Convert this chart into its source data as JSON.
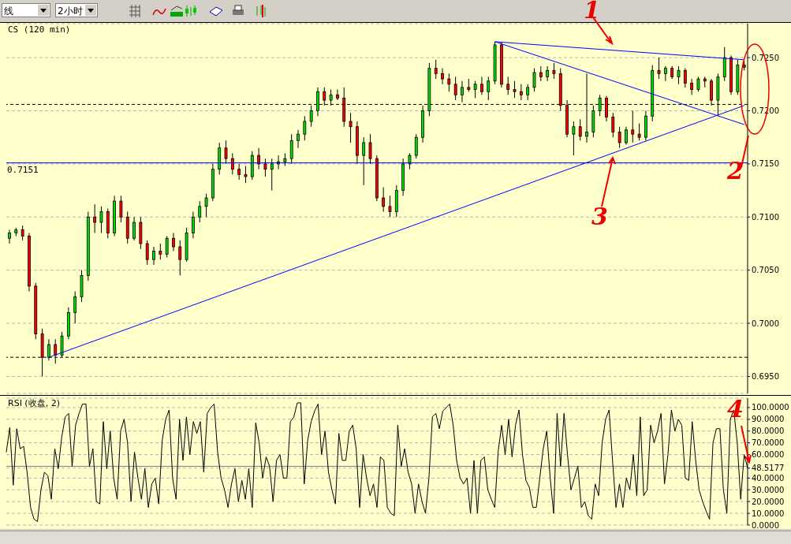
{
  "chart_data": [
    {
      "type": "candlestick",
      "title": "CS (120 min)",
      "annotations": [
        "线",
        "2小时",
        "1",
        "2",
        "3",
        "4"
      ],
      "categories": [
        null,
        null,
        null,
        null,
        null,
        null,
        null,
        null,
        null,
        null,
        null,
        null,
        null,
        null,
        null,
        null,
        null,
        null,
        null,
        null,
        null,
        null,
        null,
        null,
        null,
        null,
        null,
        null,
        null,
        null,
        null,
        null,
        null,
        null,
        null,
        null,
        null,
        null,
        null,
        null,
        null,
        null,
        null,
        null,
        null,
        null,
        null,
        null,
        null,
        null,
        null,
        null,
        null,
        null,
        null,
        null,
        null,
        null,
        null,
        null,
        null,
        null,
        null,
        null,
        null,
        null,
        null,
        null,
        null,
        null,
        null,
        null,
        null,
        null,
        null,
        null,
        null,
        null,
        null,
        null,
        null,
        null,
        null,
        null,
        null,
        null,
        null,
        null,
        null,
        null,
        null,
        null,
        null,
        null,
        null,
        null,
        null,
        null,
        null,
        null,
        null,
        null,
        null,
        null,
        null,
        null,
        null,
        null,
        null,
        null,
        null,
        null,
        null
      ],
      "ohlc": [
        [
          0.708,
          0.7088,
          0.7075,
          0.7085
        ],
        [
          0.7085,
          0.709,
          0.7082,
          0.7088
        ],
        [
          0.7088,
          0.7092,
          0.7078,
          0.7082
        ],
        [
          0.7082,
          0.7085,
          0.703,
          0.7035
        ],
        [
          0.7035,
          0.7038,
          0.6985,
          0.699
        ],
        [
          0.699,
          0.6995,
          0.695,
          0.6968
        ],
        [
          0.6968,
          0.6985,
          0.6965,
          0.698
        ],
        [
          0.698,
          0.6985,
          0.6962,
          0.697
        ],
        [
          0.697,
          0.6992,
          0.6968,
          0.6988
        ],
        [
          0.6988,
          0.7015,
          0.6985,
          0.701
        ],
        [
          0.701,
          0.703,
          0.7,
          0.7025
        ],
        [
          0.7025,
          0.705,
          0.702,
          0.7045
        ],
        [
          0.7045,
          0.7105,
          0.704,
          0.71
        ],
        [
          0.71,
          0.7112,
          0.7085,
          0.7095
        ],
        [
          0.7095,
          0.711,
          0.7085,
          0.7105
        ],
        [
          0.7105,
          0.7108,
          0.708,
          0.7085
        ],
        [
          0.7085,
          0.712,
          0.7082,
          0.7115
        ],
        [
          0.7115,
          0.712,
          0.7095,
          0.71
        ],
        [
          0.71,
          0.7105,
          0.7075,
          0.708
        ],
        [
          0.708,
          0.71,
          0.7078,
          0.7095
        ],
        [
          0.7095,
          0.71,
          0.707,
          0.7075
        ],
        [
          0.7075,
          0.7078,
          0.7055,
          0.706
        ],
        [
          0.706,
          0.7072,
          0.7055,
          0.7068
        ],
        [
          0.7068,
          0.7075,
          0.706,
          0.7065
        ],
        [
          0.7065,
          0.7082,
          0.7062,
          0.708
        ],
        [
          0.708,
          0.7085,
          0.7068,
          0.7072
        ],
        [
          0.7072,
          0.7078,
          0.7045,
          0.706
        ],
        [
          0.706,
          0.709,
          0.7058,
          0.7085
        ],
        [
          0.7085,
          0.7105,
          0.708,
          0.71
        ],
        [
          0.71,
          0.7115,
          0.7095,
          0.711
        ],
        [
          0.711,
          0.7122,
          0.71,
          0.7118
        ],
        [
          0.7118,
          0.715,
          0.7115,
          0.7145
        ],
        [
          0.7145,
          0.717,
          0.714,
          0.7165
        ],
        [
          0.7165,
          0.7172,
          0.715,
          0.7155
        ],
        [
          0.7155,
          0.716,
          0.714,
          0.7145
        ],
        [
          0.7145,
          0.715,
          0.7135,
          0.714
        ],
        [
          0.714,
          0.7148,
          0.7132,
          0.7138
        ],
        [
          0.7138,
          0.7162,
          0.7135,
          0.7158
        ],
        [
          0.7158,
          0.7165,
          0.7145,
          0.715
        ],
        [
          0.715,
          0.7155,
          0.7138,
          0.7145
        ],
        [
          0.7145,
          0.7155,
          0.7125,
          0.715
        ],
        [
          0.715,
          0.7158,
          0.7145,
          0.7152
        ],
        [
          0.7152,
          0.716,
          0.7148,
          0.7155
        ],
        [
          0.7155,
          0.7178,
          0.715,
          0.7172
        ],
        [
          0.7172,
          0.7182,
          0.7165,
          0.7178
        ],
        [
          0.7178,
          0.7195,
          0.7172,
          0.719
        ],
        [
          0.719,
          0.7205,
          0.7185,
          0.72
        ],
        [
          0.72,
          0.7222,
          0.7195,
          0.7218
        ],
        [
          0.7218,
          0.7222,
          0.7205,
          0.721
        ],
        [
          0.721,
          0.722,
          0.7205,
          0.7215
        ],
        [
          0.7215,
          0.722,
          0.721,
          0.7212
        ],
        [
          0.7212,
          0.7222,
          0.7185,
          0.719
        ],
        [
          0.719,
          0.7198,
          0.717,
          0.7185
        ],
        [
          0.7185,
          0.719,
          0.715,
          0.7158
        ],
        [
          0.7158,
          0.7175,
          0.713,
          0.717
        ],
        [
          0.717,
          0.7178,
          0.715,
          0.7155
        ],
        [
          0.7155,
          0.7158,
          0.7115,
          0.7118
        ],
        [
          0.7118,
          0.7128,
          0.7105,
          0.711
        ],
        [
          0.711,
          0.712,
          0.71,
          0.7105
        ],
        [
          0.7105,
          0.713,
          0.71,
          0.7125
        ],
        [
          0.7125,
          0.7155,
          0.712,
          0.715
        ],
        [
          0.715,
          0.716,
          0.7145,
          0.7158
        ],
        [
          0.7158,
          0.7178,
          0.7155,
          0.7175
        ],
        [
          0.7175,
          0.7205,
          0.717,
          0.72
        ],
        [
          0.72,
          0.7245,
          0.7195,
          0.724
        ],
        [
          0.724,
          0.7248,
          0.723,
          0.7235
        ],
        [
          0.7235,
          0.724,
          0.7225,
          0.723
        ],
        [
          0.723,
          0.7235,
          0.7218,
          0.7225
        ],
        [
          0.7225,
          0.7232,
          0.721,
          0.7215
        ],
        [
          0.7215,
          0.7228,
          0.7208,
          0.7222
        ],
        [
          0.7222,
          0.723,
          0.7218,
          0.722
        ],
        [
          0.722,
          0.7228,
          0.7212,
          0.7225
        ],
        [
          0.7225,
          0.7232,
          0.7215,
          0.7218
        ],
        [
          0.7218,
          0.7232,
          0.721,
          0.7228
        ],
        [
          0.7228,
          0.7265,
          0.7225,
          0.7262
        ],
        [
          0.7262,
          0.7265,
          0.7222,
          0.7225
        ],
        [
          0.7225,
          0.7232,
          0.7215,
          0.722
        ],
        [
          0.722,
          0.7228,
          0.7212,
          0.7218
        ],
        [
          0.7218,
          0.7225,
          0.721,
          0.7215
        ],
        [
          0.7215,
          0.7225,
          0.721,
          0.7222
        ],
        [
          0.7222,
          0.724,
          0.7218,
          0.7236
        ],
        [
          0.7236,
          0.7242,
          0.7228,
          0.7232
        ],
        [
          0.7232,
          0.7242,
          0.7228,
          0.7238
        ],
        [
          0.7238,
          0.7245,
          0.723,
          0.7235
        ],
        [
          0.7235,
          0.724,
          0.72,
          0.7205
        ],
        [
          0.7205,
          0.721,
          0.7175,
          0.7178
        ],
        [
          0.7178,
          0.719,
          0.7158,
          0.7185
        ],
        [
          0.7185,
          0.7192,
          0.7172,
          0.7176
        ],
        [
          0.7176,
          0.7235,
          0.717,
          0.718
        ],
        [
          0.718,
          0.7205,
          0.7175,
          0.72
        ],
        [
          0.72,
          0.7215,
          0.7195,
          0.7212
        ],
        [
          0.7212,
          0.7214,
          0.719,
          0.7194
        ],
        [
          0.7194,
          0.7198,
          0.7175,
          0.718
        ],
        [
          0.718,
          0.7185,
          0.7165,
          0.717
        ],
        [
          0.717,
          0.7185,
          0.7168,
          0.7182
        ],
        [
          0.7182,
          0.72,
          0.717,
          0.7178
        ],
        [
          0.7178,
          0.7188,
          0.7172,
          0.7175
        ],
        [
          0.7175,
          0.72,
          0.7172,
          0.7195
        ],
        [
          0.7195,
          0.7243,
          0.719,
          0.7238
        ],
        [
          0.7238,
          0.725,
          0.723,
          0.7235
        ],
        [
          0.7235,
          0.7242,
          0.7228,
          0.724
        ],
        [
          0.724,
          0.7242,
          0.723,
          0.7232
        ],
        [
          0.7232,
          0.7242,
          0.7225,
          0.7238
        ],
        [
          0.7238,
          0.724,
          0.7222,
          0.7226
        ],
        [
          0.7226,
          0.723,
          0.7215,
          0.722
        ],
        [
          0.722,
          0.7232,
          0.7218,
          0.723
        ],
        [
          0.723,
          0.7232,
          0.7222,
          0.7228
        ],
        [
          0.7228,
          0.723,
          0.7205,
          0.721
        ],
        [
          0.721,
          0.7235,
          0.7195,
          0.7232
        ],
        [
          0.7232,
          0.726,
          0.7228,
          0.725
        ],
        [
          0.725,
          0.7252,
          0.7215,
          0.7218
        ],
        [
          0.7218,
          0.7248,
          0.7215,
          0.7243
        ],
        [
          0.7243,
          0.7247,
          0.7238,
          0.7241
        ]
      ],
      "series": [
        {
          "type": "line",
          "color": "#0000ff",
          "values": [
            null,
            null,
            null,
            null,
            null,
            null,
            0.6968,
            null,
            null,
            null,
            null,
            null,
            null,
            null,
            null,
            null,
            null,
            null,
            null,
            null,
            null,
            null,
            null,
            null,
            null,
            null,
            null,
            null,
            null,
            null,
            null,
            null,
            null,
            null,
            null,
            null,
            null,
            null,
            null,
            null,
            null,
            null,
            null,
            null,
            null,
            null,
            null,
            null,
            null,
            null,
            null,
            null,
            null,
            null,
            null,
            null,
            null,
            null,
            null,
            null,
            null,
            null,
            null,
            null,
            null,
            null,
            null,
            null,
            null,
            null,
            null,
            null,
            null,
            null,
            null,
            null,
            null,
            null,
            null,
            null,
            null,
            null,
            null,
            null,
            null,
            null,
            null,
            null,
            null,
            null,
            null,
            null,
            null,
            null,
            null,
            null,
            null,
            null,
            null,
            null,
            null,
            null,
            null,
            null,
            null,
            null,
            null,
            null,
            null,
            null,
            null,
            null,
            0.7205
          ]
        },
        {
          "type": "line",
          "color": "#0000ff",
          "values": [
            null,
            null,
            null,
            null,
            null,
            null,
            null,
            null,
            null,
            null,
            null,
            null,
            null,
            null,
            null,
            null,
            null,
            null,
            null,
            null,
            null,
            null,
            null,
            null,
            null,
            null,
            null,
            null,
            null,
            null,
            null,
            null,
            null,
            null,
            null,
            null,
            null,
            null,
            null,
            null,
            null,
            null,
            null,
            null,
            null,
            null,
            null,
            null,
            null,
            null,
            null,
            null,
            null,
            null,
            null,
            null,
            null,
            null,
            null,
            null,
            null,
            null,
            null,
            null,
            null,
            null,
            null,
            null,
            null,
            null,
            null,
            null,
            null,
            null,
            0.7265,
            null,
            null,
            null,
            null,
            null,
            null,
            null,
            null,
            null,
            null,
            null,
            null,
            null,
            null,
            null,
            null,
            null,
            null,
            null,
            null,
            null,
            null,
            null,
            null,
            null,
            null,
            null,
            null,
            null,
            null,
            null,
            null,
            null,
            null,
            null,
            null,
            null,
            0.7248
          ]
        },
        {
          "type": "line",
          "color": "#0000ff",
          "values": [
            null,
            null,
            null,
            null,
            null,
            null,
            null,
            null,
            null,
            null,
            null,
            null,
            null,
            null,
            null,
            null,
            null,
            null,
            null,
            null,
            null,
            null,
            null,
            null,
            null,
            null,
            null,
            null,
            null,
            null,
            null,
            null,
            null,
            null,
            null,
            null,
            null,
            null,
            null,
            null,
            null,
            null,
            null,
            null,
            null,
            null,
            null,
            null,
            null,
            null,
            null,
            null,
            null,
            null,
            null,
            null,
            null,
            null,
            null,
            null,
            null,
            null,
            null,
            null,
            null,
            null,
            null,
            null,
            null,
            null,
            null,
            null,
            null,
            null,
            0.7265,
            null,
            null,
            null,
            null,
            null,
            null,
            null,
            null,
            null,
            null,
            null,
            null,
            null,
            null,
            null,
            null,
            null,
            null,
            null,
            null,
            null,
            null,
            null,
            null,
            null,
            null,
            null,
            null,
            null,
            null,
            null,
            null,
            null,
            null,
            null,
            null,
            null,
            0.7187
          ]
        }
      ],
      "ylim": [
        0.6934,
        0.7282
      ],
      "yticks": [
        {
          "value": 0.695,
          "label": "0.6950"
        },
        {
          "value": 0.7,
          "label": "0.7000"
        },
        {
          "value": 0.705,
          "label": "0.7050"
        },
        {
          "value": 0.71,
          "label": "0.7100"
        },
        {
          "value": 0.715,
          "label": "0.7150"
        },
        {
          "value": 0.72,
          "label": "0.7200"
        },
        {
          "value": 0.725,
          "label": "0.7250"
        }
      ],
      "grid": "y",
      "ref_lines": [
        {
          "axis": "y",
          "value": 0.7151,
          "label": "0.7151",
          "color": "#0000ff"
        },
        {
          "axis": "y",
          "value": 0.7206,
          "color": "#000000",
          "line_style": "dashed"
        },
        {
          "axis": "y",
          "value": 0.6968,
          "color": "#000000",
          "line_style": "dashed"
        }
      ]
    },
    {
      "type": "line",
      "title": "RSI (收盘, 2)",
      "color": "#000000",
      "categories": [
        null,
        null,
        null,
        null,
        null,
        null,
        null,
        null,
        null,
        null,
        null,
        null,
        null,
        null,
        null,
        null,
        null,
        null,
        null,
        null,
        null,
        null,
        null,
        null,
        null,
        null,
        null,
        null,
        null,
        null,
        null,
        null,
        null,
        null,
        null,
        null,
        null,
        null,
        null,
        null,
        null,
        null,
        null,
        null,
        null,
        null,
        null,
        null,
        null,
        null,
        null,
        null,
        null,
        null,
        null,
        null,
        null,
        null,
        null,
        null,
        null,
        null,
        null,
        null,
        null,
        null,
        null,
        null,
        null,
        null,
        null,
        null,
        null,
        null,
        null,
        null,
        null,
        null,
        null,
        null,
        null,
        null,
        null,
        null,
        null,
        null,
        null,
        null,
        null,
        null,
        null,
        null,
        null,
        null,
        null,
        null,
        null,
        null,
        null,
        null,
        null,
        null,
        null,
        null,
        null,
        null,
        null,
        null,
        null,
        null,
        null,
        null,
        null,
        null,
        null,
        null,
        null,
        null,
        null,
        null,
        null,
        null,
        null,
        null,
        null,
        null,
        null,
        null,
        null,
        null,
        null,
        null,
        null,
        null,
        null,
        null,
        null,
        null,
        null,
        null,
        null,
        null,
        null,
        null,
        null,
        null,
        null,
        null,
        null,
        null,
        null,
        null,
        null,
        null,
        null,
        null,
        null,
        null,
        null,
        null,
        null,
        null,
        null,
        null,
        null,
        null,
        null,
        null,
        null,
        null,
        null,
        null,
        null,
        null,
        null,
        null,
        null,
        null,
        null,
        null,
        null,
        null,
        null,
        null,
        null,
        null,
        null,
        null,
        null,
        null,
        null,
        null,
        null,
        null,
        null,
        null,
        null,
        null,
        null,
        null,
        null,
        null,
        null,
        null,
        null,
        null,
        null,
        null,
        null,
        null,
        null,
        null,
        null,
        null,
        null
      ],
      "values": [
        62,
        83,
        34,
        82,
        65,
        67,
        45,
        15,
        5,
        3,
        30,
        45,
        42,
        22,
        65,
        48,
        75,
        92,
        95,
        50,
        85,
        95,
        103,
        103,
        50,
        65,
        20,
        18,
        88,
        48,
        80,
        40,
        22,
        80,
        90,
        70,
        20,
        62,
        40,
        22,
        48,
        15,
        35,
        40,
        18,
        72,
        90,
        98,
        40,
        22,
        90,
        55,
        92,
        60,
        88,
        78,
        88,
        45,
        95,
        100,
        103,
        62,
        40,
        30,
        15,
        35,
        48,
        20,
        38,
        22,
        48,
        15,
        87,
        70,
        40,
        58,
        50,
        20,
        55,
        60,
        40,
        40,
        88,
        92,
        104,
        104,
        35,
        72,
        88,
        97,
        103,
        60,
        80,
        45,
        30,
        18,
        78,
        55,
        55,
        80,
        85,
        65,
        15,
        60,
        40,
        25,
        35,
        15,
        58,
        55,
        15,
        10,
        8,
        85,
        50,
        65,
        45,
        35,
        10,
        35,
        20,
        10,
        40,
        92,
        95,
        82,
        97,
        100,
        103,
        85,
        55,
        40,
        35,
        40,
        10,
        55,
        10,
        55,
        58,
        30,
        22,
        15,
        63,
        85,
        60,
        90,
        58,
        85,
        98,
        60,
        38,
        32,
        15,
        15,
        40,
        65,
        80,
        40,
        10,
        95,
        50,
        95,
        60,
        30,
        40,
        50,
        15,
        20,
        8,
        5,
        35,
        25,
        70,
        90,
        98,
        55,
        15,
        35,
        15,
        40,
        30,
        60,
        25,
        92,
        25,
        30,
        85,
        70,
        80,
        95,
        35,
        60,
        98,
        80,
        90,
        85,
        40,
        38,
        88,
        55,
        30,
        20,
        12,
        5,
        70,
        82,
        82,
        30,
        10,
        90,
        98,
        70,
        22,
        60,
        48.5177
      ],
      "ylim": [
        0,
        108
      ],
      "yticks": [
        {
          "value": 0,
          "label": "0.0000"
        },
        {
          "value": 10,
          "label": "10.0000"
        },
        {
          "value": 20,
          "label": "20.0000"
        },
        {
          "value": 30,
          "label": "30.0000"
        },
        {
          "value": 40,
          "label": "40.0000"
        },
        {
          "value": 48.5177,
          "label": "48.5177"
        },
        {
          "value": 60,
          "label": "60.0000"
        },
        {
          "value": 70,
          "label": "70.0000"
        },
        {
          "value": 80,
          "label": "80.0000"
        },
        {
          "value": 90,
          "label": "90.0000"
        },
        {
          "value": 100,
          "label": "100.0000"
        }
      ],
      "grid": "y",
      "ref_lines": [
        {
          "axis": "y",
          "value": 50,
          "color": "#808080"
        }
      ]
    }
  ]
}
